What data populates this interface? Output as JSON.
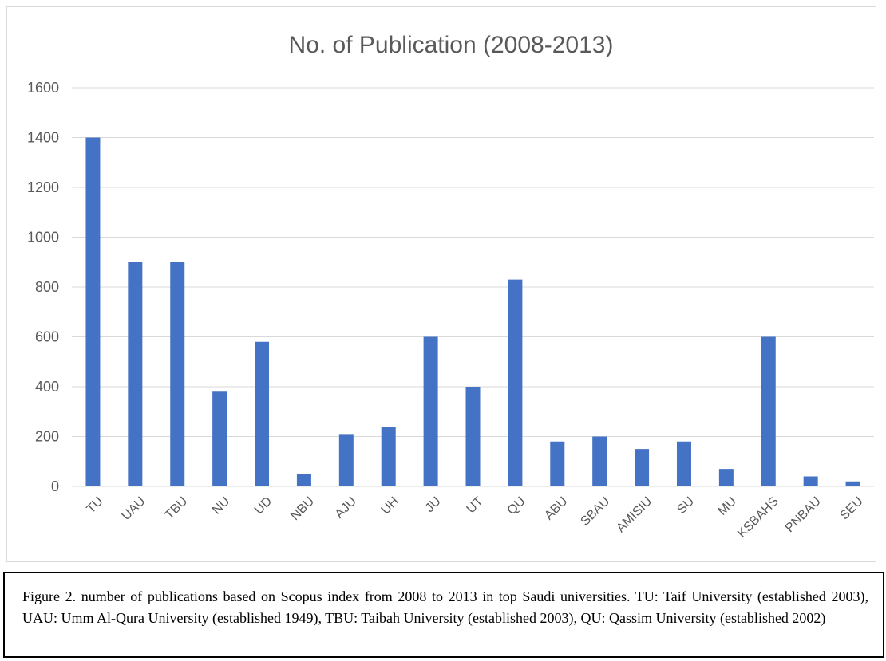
{
  "chart_data": {
    "type": "bar",
    "title": "No. of Publication (2008-2013)",
    "xlabel": "",
    "ylabel": "",
    "categories": [
      "TU",
      "UAU",
      "TBU",
      "NU",
      "UD",
      "NBU",
      "AJU",
      "UH",
      "JU",
      "UT",
      "QU",
      "ABU",
      "SBAU",
      "AMISIU",
      "SU",
      "MU",
      "KSBAHS",
      "PNBAU",
      "SEU"
    ],
    "values": [
      1400,
      900,
      900,
      380,
      580,
      50,
      210,
      240,
      600,
      400,
      830,
      180,
      200,
      150,
      180,
      70,
      600,
      40,
      20
    ],
    "ylim": [
      0,
      1600
    ],
    "yticks": [
      0,
      200,
      400,
      600,
      800,
      1000,
      1200,
      1400,
      1600
    ],
    "grid": true,
    "legend": "none",
    "bar_color": "#4472c4"
  },
  "caption": "Figure 2. number of publications based on Scopus index from 2008 to 2013 in top Saudi universities. TU: Taif University (established 2003), UAU: Umm Al-Qura University (established 1949), TBU: Taibah University (established 2003), QU: Qassim University (established 2002)"
}
